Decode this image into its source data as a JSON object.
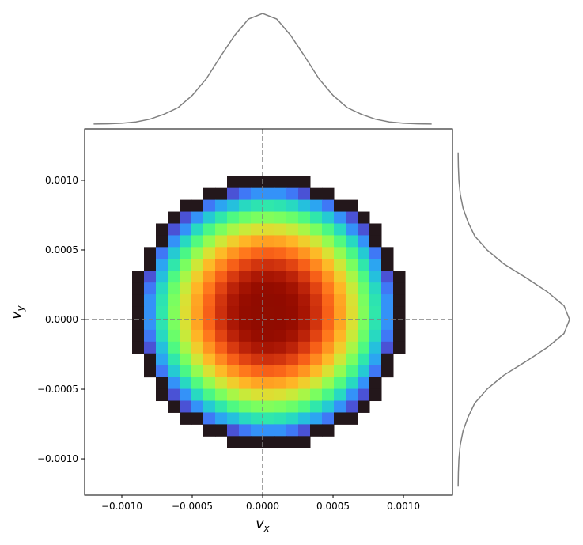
{
  "chart_data": {
    "type": "hist2d",
    "xlabel": "v",
    "xlabel_sub": "x",
    "ylabel": "v",
    "ylabel_sub": "y",
    "xlim": [
      -0.001264,
      0.001348
    ],
    "ylim": [
      -0.001261,
      0.001369
    ],
    "xticks": [
      {
        "value": -0.001,
        "label": "−0.0010"
      },
      {
        "value": -0.0005,
        "label": "−0.0005"
      },
      {
        "value": 0,
        "label": "0.0000"
      },
      {
        "value": 0.0005,
        "label": "0.0005"
      },
      {
        "value": 0.001,
        "label": "0.0010"
      }
    ],
    "yticks": [
      {
        "value": -0.001,
        "label": "−0.0010"
      },
      {
        "value": -0.0005,
        "label": "−0.0005"
      },
      {
        "value": 0,
        "label": "0.0000"
      },
      {
        "value": 0.0005,
        "label": "0.0005"
      },
      {
        "value": 0.001,
        "label": "0.0010"
      }
    ],
    "colormap": "turbo",
    "norm": "log",
    "crosshair": {
      "x": 0,
      "y": 0,
      "color": "#808080"
    },
    "z": [
      [
        null,
        null,
        null,
        null,
        null,
        null,
        null,
        null,
        null,
        null,
        null,
        null,
        null,
        null,
        null,
        null,
        null,
        null,
        null,
        null,
        null,
        null,
        null,
        null,
        null,
        null,
        null,
        null,
        null,
        null,
        null
      ],
      [
        null,
        null,
        null,
        null,
        null,
        null,
        null,
        null,
        null,
        null,
        null,
        null,
        null,
        null,
        null,
        null,
        null,
        null,
        null,
        null,
        null,
        null,
        null,
        null,
        null,
        null,
        null,
        null,
        null,
        null,
        null
      ],
      [
        null,
        null,
        null,
        null,
        null,
        null,
        null,
        null,
        null,
        null,
        null,
        null,
        null,
        null,
        null,
        null,
        null,
        null,
        null,
        null,
        null,
        null,
        null,
        null,
        null,
        null,
        null,
        null,
        null,
        null,
        null
      ],
      [
        null,
        null,
        null,
        null,
        null,
        null,
        null,
        null,
        null,
        null,
        null,
        null,
        null,
        null,
        null,
        null,
        null,
        null,
        null,
        null,
        null,
        null,
        null,
        null,
        null,
        null,
        null,
        null,
        null,
        null,
        null
      ],
      [
        null,
        null,
        null,
        null,
        null,
        null,
        null,
        null,
        null,
        null,
        null,
        null,
        1,
        1,
        1,
        1,
        1,
        1,
        1,
        null,
        null,
        null,
        null,
        null,
        null,
        null,
        null,
        null,
        null,
        null,
        null
      ],
      [
        null,
        null,
        null,
        null,
        null,
        null,
        null,
        null,
        null,
        null,
        1,
        1,
        2,
        3,
        4,
        4,
        4,
        3,
        2,
        1,
        1,
        null,
        null,
        null,
        null,
        null,
        null,
        null,
        null,
        null,
        null
      ],
      [
        null,
        null,
        null,
        null,
        null,
        null,
        null,
        null,
        1,
        1,
        3,
        5,
        7,
        10,
        12,
        13,
        12,
        10,
        7,
        5,
        3,
        1,
        1,
        null,
        null,
        null,
        null,
        null,
        null,
        null,
        null
      ],
      [
        null,
        null,
        null,
        null,
        null,
        null,
        null,
        1,
        2,
        4,
        8,
        13,
        21,
        29,
        34,
        37,
        34,
        29,
        21,
        13,
        8,
        4,
        2,
        1,
        null,
        null,
        null,
        null,
        null,
        null,
        null
      ],
      [
        null,
        null,
        null,
        null,
        null,
        null,
        1,
        2,
        4,
        10,
        20,
        34,
        53,
        73,
        88,
        94,
        88,
        73,
        53,
        34,
        20,
        10,
        4,
        2,
        1,
        null,
        null,
        null,
        null,
        null,
        null
      ],
      [
        null,
        null,
        null,
        null,
        null,
        null,
        1,
        4,
        10,
        22,
        44,
        78,
        120,
        164,
        198,
        211,
        198,
        164,
        120,
        78,
        44,
        22,
        10,
        4,
        1,
        null,
        null,
        null,
        null,
        null,
        null
      ],
      [
        null,
        null,
        null,
        null,
        null,
        1,
        3,
        8,
        20,
        44,
        88,
        154,
        239,
        326,
        394,
        419,
        394,
        326,
        239,
        154,
        88,
        44,
        20,
        8,
        3,
        1,
        null,
        null,
        null,
        null,
        null
      ],
      [
        null,
        null,
        null,
        null,
        null,
        1,
        5,
        13,
        34,
        78,
        154,
        271,
        419,
        573,
        691,
        736,
        691,
        573,
        419,
        271,
        154,
        78,
        34,
        13,
        5,
        1,
        null,
        null,
        null,
        null,
        null
      ],
      [
        null,
        null,
        null,
        null,
        1,
        2,
        7,
        21,
        53,
        120,
        239,
        419,
        649,
        887,
        1071,
        1140,
        1071,
        887,
        649,
        419,
        239,
        120,
        53,
        21,
        7,
        2,
        1,
        null,
        null,
        null,
        null
      ],
      [
        null,
        null,
        null,
        null,
        1,
        3,
        10,
        29,
        73,
        164,
        326,
        573,
        887,
        1213,
        1463,
        1558,
        1463,
        1213,
        887,
        573,
        326,
        164,
        73,
        29,
        10,
        3,
        1,
        null,
        null,
        null,
        null
      ],
      [
        null,
        null,
        null,
        null,
        1,
        4,
        12,
        34,
        88,
        198,
        394,
        691,
        1071,
        1463,
        1765,
        1879,
        1765,
        1463,
        1071,
        691,
        394,
        198,
        88,
        34,
        12,
        4,
        1,
        null,
        null,
        null,
        null
      ],
      [
        null,
        null,
        null,
        null,
        1,
        4,
        13,
        37,
        94,
        211,
        419,
        736,
        1140,
        1558,
        1879,
        2000,
        1879,
        1558,
        1140,
        736,
        419,
        211,
        94,
        37,
        13,
        4,
        1,
        null,
        null,
        null,
        null
      ],
      [
        null,
        null,
        null,
        null,
        1,
        4,
        12,
        34,
        88,
        198,
        394,
        691,
        1071,
        1463,
        1765,
        1879,
        1765,
        1463,
        1071,
        691,
        394,
        198,
        88,
        34,
        12,
        4,
        1,
        null,
        null,
        null,
        null
      ],
      [
        null,
        null,
        null,
        null,
        1,
        3,
        10,
        29,
        73,
        164,
        326,
        573,
        887,
        1213,
        1463,
        1558,
        1463,
        1213,
        887,
        573,
        326,
        164,
        73,
        29,
        10,
        3,
        1,
        null,
        null,
        null,
        null
      ],
      [
        null,
        null,
        null,
        null,
        1,
        2,
        7,
        21,
        53,
        120,
        239,
        419,
        649,
        887,
        1071,
        1140,
        1071,
        887,
        649,
        419,
        239,
        120,
        53,
        21,
        7,
        2,
        1,
        null,
        null,
        null,
        null
      ],
      [
        null,
        null,
        null,
        null,
        null,
        1,
        5,
        13,
        34,
        78,
        154,
        271,
        419,
        573,
        691,
        736,
        691,
        573,
        419,
        271,
        154,
        78,
        34,
        13,
        5,
        1,
        null,
        null,
        null,
        null,
        null
      ],
      [
        null,
        null,
        null,
        null,
        null,
        1,
        3,
        8,
        20,
        44,
        88,
        154,
        239,
        326,
        394,
        419,
        394,
        326,
        239,
        154,
        88,
        44,
        20,
        8,
        3,
        1,
        null,
        null,
        null,
        null,
        null
      ],
      [
        null,
        null,
        null,
        null,
        null,
        null,
        1,
        4,
        10,
        22,
        44,
        78,
        120,
        164,
        198,
        211,
        198,
        164,
        120,
        78,
        44,
        22,
        10,
        4,
        1,
        null,
        null,
        null,
        null,
        null,
        null
      ],
      [
        null,
        null,
        null,
        null,
        null,
        null,
        1,
        2,
        4,
        10,
        20,
        34,
        53,
        73,
        88,
        94,
        88,
        73,
        53,
        34,
        20,
        10,
        4,
        2,
        1,
        null,
        null,
        null,
        null,
        null,
        null
      ],
      [
        null,
        null,
        null,
        null,
        null,
        null,
        null,
        1,
        2,
        4,
        8,
        13,
        21,
        29,
        34,
        37,
        34,
        29,
        21,
        13,
        8,
        4,
        2,
        1,
        null,
        null,
        null,
        null,
        null,
        null,
        null
      ],
      [
        null,
        null,
        null,
        null,
        null,
        null,
        null,
        null,
        1,
        1,
        3,
        5,
        7,
        10,
        12,
        13,
        12,
        10,
        7,
        5,
        3,
        1,
        1,
        null,
        null,
        null,
        null,
        null,
        null,
        null,
        null
      ],
      [
        null,
        null,
        null,
        null,
        null,
        null,
        null,
        null,
        null,
        null,
        1,
        1,
        2,
        3,
        4,
        4,
        4,
        3,
        2,
        1,
        1,
        null,
        null,
        null,
        null,
        null,
        null,
        null,
        null,
        null,
        null
      ],
      [
        null,
        null,
        null,
        null,
        null,
        null,
        null,
        null,
        null,
        null,
        null,
        null,
        1,
        1,
        1,
        1,
        1,
        1,
        1,
        null,
        null,
        null,
        null,
        null,
        null,
        null,
        null,
        null,
        null,
        null,
        null
      ],
      [
        null,
        null,
        null,
        null,
        null,
        null,
        null,
        null,
        null,
        null,
        null,
        null,
        null,
        null,
        null,
        null,
        null,
        null,
        null,
        null,
        null,
        null,
        null,
        null,
        null,
        null,
        null,
        null,
        null,
        null,
        null
      ],
      [
        null,
        null,
        null,
        null,
        null,
        null,
        null,
        null,
        null,
        null,
        null,
        null,
        null,
        null,
        null,
        null,
        null,
        null,
        null,
        null,
        null,
        null,
        null,
        null,
        null,
        null,
        null,
        null,
        null,
        null,
        null
      ],
      [
        null,
        null,
        null,
        null,
        null,
        null,
        null,
        null,
        null,
        null,
        null,
        null,
        null,
        null,
        null,
        null,
        null,
        null,
        null,
        null,
        null,
        null,
        null,
        null,
        null,
        null,
        null,
        null,
        null,
        null,
        null
      ],
      [
        null,
        null,
        null,
        null,
        null,
        null,
        null,
        null,
        null,
        null,
        null,
        null,
        null,
        null,
        null,
        null,
        null,
        null,
        null,
        null,
        null,
        null,
        null,
        null,
        null,
        null,
        null,
        null,
        null,
        null,
        null
      ]
    ],
    "marginal_x": {
      "color": "#808080",
      "x": [
        -0.0012,
        -0.0011,
        -0.001,
        -0.0009,
        -0.0008,
        -0.0007,
        -0.0006,
        -0.0005,
        -0.0004,
        -0.0003,
        -0.0002,
        -0.0001,
        0,
        0.0001,
        0.0002,
        0.0003,
        0.0004,
        0.0005,
        0.0006,
        0.0007,
        0.0008,
        0.0009,
        0.001,
        0.0011,
        0.0012
      ],
      "density": [
        0.001,
        0.003,
        0.008,
        0.02,
        0.045,
        0.09,
        0.15,
        0.26,
        0.41,
        0.61,
        0.8,
        0.95,
        1,
        0.95,
        0.8,
        0.61,
        0.41,
        0.26,
        0.15,
        0.09,
        0.045,
        0.02,
        0.008,
        0.003,
        0.001
      ]
    },
    "marginal_y": {
      "color": "#808080",
      "y": [
        -0.0012,
        -0.0011,
        -0.001,
        -0.0009,
        -0.0008,
        -0.0007,
        -0.0006,
        -0.0005,
        -0.0004,
        -0.0003,
        -0.0002,
        -0.0001,
        0,
        0.0001,
        0.0002,
        0.0003,
        0.0004,
        0.0005,
        0.0006,
        0.0007,
        0.0008,
        0.0009,
        0.001,
        0.0011,
        0.0012
      ],
      "density": [
        0.001,
        0.003,
        0.008,
        0.02,
        0.045,
        0.09,
        0.15,
        0.26,
        0.41,
        0.61,
        0.8,
        0.95,
        1,
        0.95,
        0.8,
        0.61,
        0.41,
        0.26,
        0.15,
        0.09,
        0.045,
        0.02,
        0.008,
        0.003,
        0.001
      ]
    }
  }
}
